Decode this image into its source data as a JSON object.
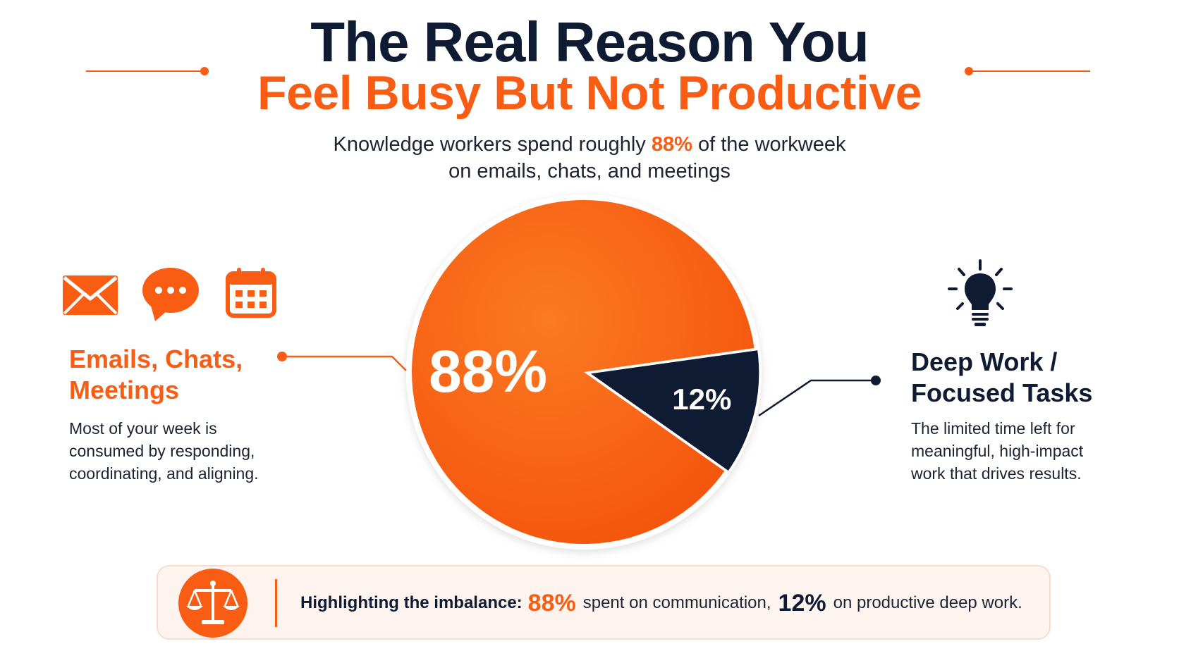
{
  "title": {
    "line1": "The Real Reason You",
    "line2": "Feel Busy But Not Productive"
  },
  "subtitle": {
    "part1": "Knowledge workers spend roughly ",
    "highlight": "88%",
    "part2": " of the workweek",
    "line2": "on emails, chats, and meetings"
  },
  "chart_data": {
    "type": "pie",
    "slices": [
      {
        "label": "Emails, Chats, Meetings",
        "value": 88,
        "display": "88%",
        "color": "#f95d14"
      },
      {
        "label": "Deep Work / Focused Tasks",
        "value": 12,
        "display": "12%",
        "color": "#0f1b33"
      }
    ]
  },
  "left": {
    "icons": [
      "envelope-icon",
      "chat-bubble-icon",
      "calendar-icon"
    ],
    "heading_line1": "Emails, Chats,",
    "heading_line2": "Meetings",
    "body_line1": "Most of your week is",
    "body_line2": "consumed by responding,",
    "body_line3": "coordinating, and aligning."
  },
  "right": {
    "icon": "lightbulb-icon",
    "heading_line1": "Deep Work /",
    "heading_line2": "Focused Tasks",
    "body_line1": "The limited time left for",
    "body_line2": "meaningful, high-impact",
    "body_line3": "work that drives results."
  },
  "bottom": {
    "icon": "scale-icon",
    "lead": "Highlighting the imbalance:",
    "stat1": "88%",
    "text1": "spent on communication,",
    "stat2": "12%",
    "text2": "on productive deep work."
  },
  "colors": {
    "accent": "#f95d14",
    "navy": "#0f1b33",
    "text": "#1c2333",
    "panel": "#fdf4ef"
  }
}
